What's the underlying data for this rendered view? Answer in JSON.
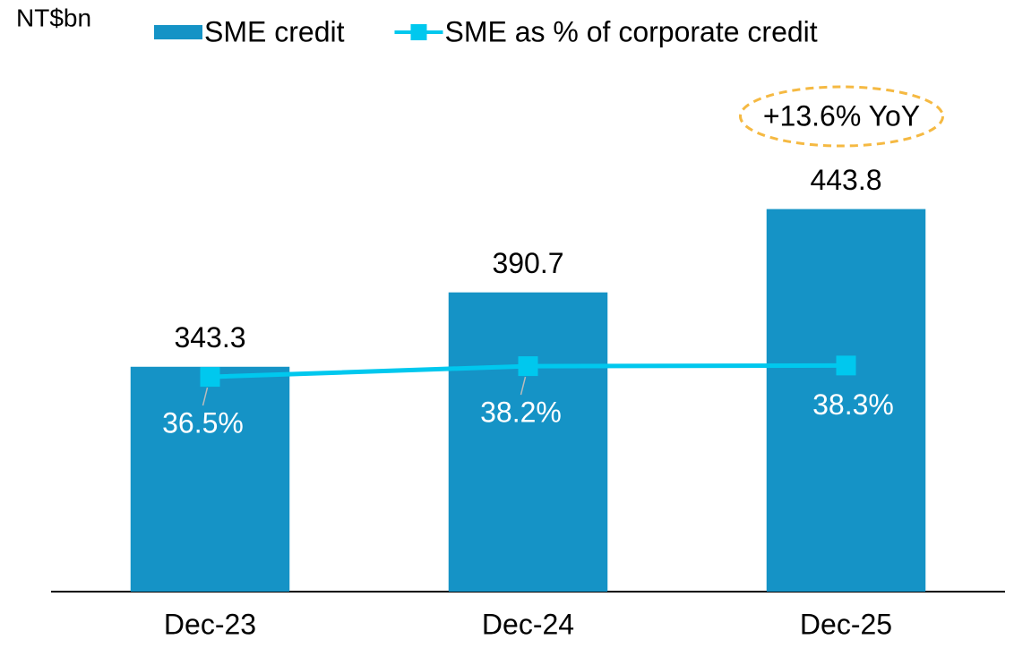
{
  "chart_data": {
    "type": "bar",
    "unit_label": "NT$bn",
    "categories": [
      "Dec-23",
      "Dec-24",
      "Dec-25"
    ],
    "series": [
      {
        "name": "SME credit",
        "type": "bar",
        "color": "#1593c6",
        "values": [
          343.3,
          390.7,
          443.8
        ]
      },
      {
        "name": "SME as % of corporate credit",
        "type": "line",
        "axis": "y2",
        "color": "#00c8ee",
        "values": [
          36.5,
          38.2,
          38.3
        ],
        "value_labels": [
          "36.5%",
          "38.2%",
          "38.3%"
        ]
      }
    ],
    "ylim": [
      200,
      520
    ],
    "y2lim": [
      2.5,
      82
    ],
    "annotation": "+13.6% YoY",
    "annotation_color": "#f5b942"
  }
}
